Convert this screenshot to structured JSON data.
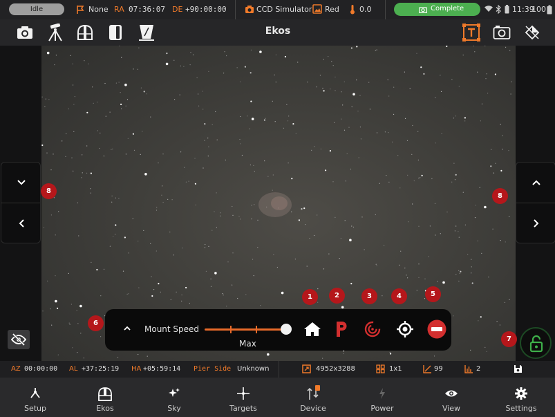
{
  "status_bar": {
    "state": "Idle",
    "tracking": "None",
    "ra_label": "RA",
    "ra_value": "07:36:07",
    "de_label": "DE",
    "de_value": "+90:00:00",
    "camera": "CCD Simulator",
    "filter": "Red",
    "temperature": "0.0",
    "capture_status": "Complete",
    "time": "11:39",
    "battery": "100"
  },
  "toolbar": {
    "title": "Ekos",
    "left_icons": [
      "camera-icon",
      "tripod-mount-icon",
      "dome-icon",
      "dust-cap-icon",
      "flat-panel-icon"
    ],
    "right_icons": [
      "target-frame-icon",
      "capture-preview-icon",
      "focus-tool-icon"
    ]
  },
  "mount_panel": {
    "speed_label": "Mount Speed",
    "speed_value": "Max",
    "speed_level": 1.0,
    "buttons": [
      "home-button",
      "park-button",
      "tracking-button",
      "goto-button",
      "stop-button"
    ]
  },
  "badges": [
    "1",
    "2",
    "3",
    "4",
    "5",
    "6",
    "7",
    "8",
    "8"
  ],
  "info_bar": {
    "az_label": "AZ",
    "az_value": "00:00:00",
    "al_label": "AL",
    "al_value": "+37:25:19",
    "ha_label": "HA",
    "ha_value": "+05:59:14",
    "pier_label": "Pier Side",
    "pier_value": "Unknown",
    "resolution": "4952x3288",
    "binning": "1x1",
    "stretch": "99",
    "count": "2"
  },
  "bottom_nav": [
    {
      "label": "Setup",
      "icon": "setup-icon"
    },
    {
      "label": "Ekos",
      "icon": "ekos-icon"
    },
    {
      "label": "Sky",
      "icon": "sky-icon"
    },
    {
      "label": "Targets",
      "icon": "targets-icon"
    },
    {
      "label": "Device",
      "icon": "device-icon"
    },
    {
      "label": "Power",
      "icon": "power-icon"
    },
    {
      "label": "View",
      "icon": "view-icon"
    },
    {
      "label": "Settings",
      "icon": "settings-icon"
    }
  ],
  "colors": {
    "accent": "#f07a2a",
    "complete": "#4caf50",
    "badge": "#b5171b",
    "park": "#d32f2f"
  }
}
